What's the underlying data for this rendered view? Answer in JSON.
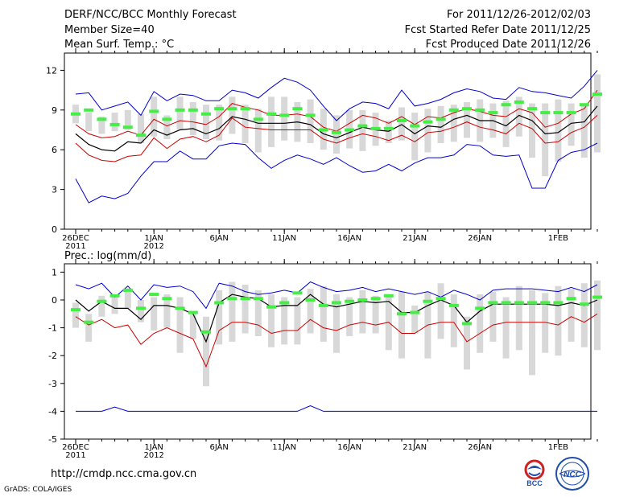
{
  "header": {
    "title": "DERF/NCC/BCC Monthly Forecast",
    "member_size": "Member Size=40",
    "variable_temp": "Mean Surf. Temp.: °C",
    "period": "For 2011/12/26-2012/02/03",
    "fcst_started": "Fcst Started Refer Date 2011/12/25",
    "fcst_produced": "Fcst Produced Date 2011/12/26"
  },
  "footer": {
    "url": "http://cmdp.ncc.cma.gov.cn",
    "grads": "GrADS: COLA/IGES",
    "logo_bcc": "BCC",
    "logo_ncc": "NCC"
  },
  "colors": {
    "max": "#0000cc",
    "min": "#cc0000",
    "mean": "#000000",
    "obs": "#44ee44",
    "bar": "#d8d8d8"
  },
  "chart_data": [
    {
      "type": "line",
      "title": "Mean Surf. Temp.: °C",
      "ylim": [
        0,
        13.3
      ],
      "yticks": [
        0,
        3,
        6,
        9,
        12
      ],
      "x_dates": "2011/12/26 to 2012/02/03 (daily)",
      "xticks": [
        {
          "day": 0,
          "label": "26DEC",
          "sub": "2011"
        },
        {
          "day": 6,
          "label": "1JAN",
          "sub": "2012"
        },
        {
          "day": 11,
          "label": "6JAN",
          "sub": ""
        },
        {
          "day": 16,
          "label": "11JAN",
          "sub": ""
        },
        {
          "day": 21,
          "label": "16JAN",
          "sub": ""
        },
        {
          "day": 26,
          "label": "21JAN",
          "sub": ""
        },
        {
          "day": 31,
          "label": "26JAN",
          "sub": ""
        },
        {
          "day": 37,
          "label": "1FEB",
          "sub": ""
        }
      ],
      "series": [
        {
          "name": "max",
          "values": [
            10.2,
            10.3,
            9.0,
            9.3,
            9.6,
            8.6,
            10.4,
            9.7,
            10.2,
            10.1,
            9.7,
            9.7,
            10.5,
            10.3,
            9.9,
            10.7,
            11.4,
            11.1,
            10.5,
            9.3,
            8.2,
            9.1,
            9.6,
            9.5,
            9.1,
            10.5,
            9.3,
            9.5,
            9.8,
            10.3,
            10.6,
            10.4,
            9.9,
            9.8,
            10.7,
            10.4,
            10.3,
            10.1,
            9.9,
            10.8,
            12.0
          ]
        },
        {
          "name": "p75",
          "values": [
            7.9,
            7.2,
            6.9,
            7.0,
            7.4,
            7.1,
            8.3,
            7.8,
            8.2,
            8.1,
            7.9,
            8.5,
            9.5,
            9.2,
            9.0,
            8.6,
            8.6,
            8.7,
            8.5,
            7.7,
            7.4,
            8.0,
            8.6,
            8.4,
            8.0,
            8.5,
            7.9,
            8.5,
            8.4,
            8.8,
            9.1,
            8.9,
            8.6,
            8.5,
            9.1,
            8.8,
            7.7,
            8.0,
            8.7,
            9.1,
            10.5
          ]
        },
        {
          "name": "mean",
          "values": [
            7.2,
            6.4,
            6.0,
            5.9,
            6.6,
            6.5,
            7.5,
            7.1,
            7.5,
            7.6,
            7.2,
            7.6,
            8.5,
            8.3,
            8.0,
            8.0,
            8.0,
            8.1,
            7.9,
            7.2,
            6.9,
            7.3,
            7.7,
            7.5,
            7.4,
            7.9,
            7.2,
            7.8,
            7.7,
            8.3,
            8.6,
            8.2,
            8.2,
            7.8,
            8.6,
            8.2,
            7.2,
            7.3,
            8.0,
            8.1,
            9.3
          ]
        },
        {
          "name": "min",
          "values": [
            6.5,
            5.6,
            5.2,
            5.1,
            5.5,
            5.6,
            6.9,
            6.1,
            6.8,
            7.0,
            6.6,
            7.1,
            8.4,
            7.7,
            7.6,
            7.5,
            7.5,
            7.5,
            7.5,
            6.8,
            6.5,
            6.9,
            7.2,
            7.0,
            6.7,
            7.1,
            6.6,
            7.3,
            7.4,
            7.7,
            8.1,
            7.7,
            7.5,
            7.2,
            8.0,
            7.6,
            6.5,
            6.6,
            7.3,
            7.7,
            8.6
          ]
        },
        {
          "name": "abs_min",
          "values": [
            3.8,
            2.0,
            2.5,
            2.3,
            2.7,
            4.0,
            5.1,
            5.1,
            5.9,
            5.3,
            5.3,
            6.3,
            6.5,
            6.4,
            5.4,
            4.6,
            5.2,
            5.6,
            5.3,
            4.9,
            5.4,
            4.8,
            4.3,
            4.4,
            4.9,
            4.4,
            5.0,
            5.4,
            5.4,
            5.6,
            6.4,
            6.3,
            5.6,
            5.5,
            5.6,
            3.1,
            3.1,
            5.2,
            5.8,
            6.0,
            6.5
          ]
        },
        {
          "name": "obs",
          "values": [
            8.7,
            9.0,
            8.3,
            7.9,
            7.7,
            7.1,
            8.9,
            8.3,
            9.0,
            9.0,
            8.7,
            9.1,
            9.1,
            9.1,
            8.3,
            8.7,
            8.6,
            9.1,
            8.6,
            7.5,
            7.3,
            7.5,
            7.8,
            7.6,
            7.6,
            8.2,
            7.8,
            8.1,
            8.3,
            9.0,
            9.1,
            9.0,
            8.8,
            9.4,
            9.6,
            9.1,
            8.8,
            8.8,
            8.8,
            9.4,
            10.2
          ]
        },
        {
          "name": "bar_lo",
          "values": [
            8.0,
            7.4,
            7.2,
            7.4,
            7.5,
            6.5,
            7.0,
            6.8,
            7.5,
            7.1,
            6.8,
            6.7,
            7.2,
            6.5,
            5.8,
            6.2,
            6.7,
            6.6,
            6.5,
            6.0,
            5.7,
            6.1,
            5.9,
            6.3,
            6.5,
            6.7,
            5.2,
            5.8,
            6.5,
            6.6,
            6.9,
            6.6,
            6.9,
            6.2,
            7.0,
            5.4,
            4.0,
            5.1,
            6.3,
            5.4,
            5.8
          ]
        },
        {
          "name": "bar_hi",
          "values": [
            9.4,
            8.8,
            8.5,
            8.8,
            9.0,
            8.7,
            10.0,
            8.6,
            10.0,
            9.6,
            9.4,
            9.4,
            10.0,
            9.4,
            9.1,
            10.0,
            10.0,
            9.6,
            9.8,
            9.1,
            8.6,
            9.0,
            9.0,
            8.8,
            8.2,
            9.2,
            8.8,
            9.1,
            9.3,
            9.4,
            9.6,
            9.8,
            9.5,
            9.7,
            10.0,
            9.5,
            9.5,
            9.8,
            9.5,
            9.5,
            11.7
          ]
        }
      ]
    },
    {
      "type": "line",
      "title": "Prec.: log(mm/d)",
      "ylim": [
        -5,
        1.3
      ],
      "yticks": [
        -5,
        -4,
        -3,
        -2,
        -1,
        0,
        1
      ],
      "xticks": [
        {
          "day": 0,
          "label": "26DEC",
          "sub": "2011"
        },
        {
          "day": 6,
          "label": "1JAN",
          "sub": "2012"
        },
        {
          "day": 11,
          "label": "6JAN",
          "sub": ""
        },
        {
          "day": 16,
          "label": "11JAN",
          "sub": ""
        },
        {
          "day": 21,
          "label": "16JAN",
          "sub": ""
        },
        {
          "day": 26,
          "label": "21JAN",
          "sub": ""
        },
        {
          "day": 31,
          "label": "26JAN",
          "sub": ""
        },
        {
          "day": 37,
          "label": "1FEB",
          "sub": ""
        }
      ],
      "series": [
        {
          "name": "max",
          "values": [
            0.55,
            0.4,
            0.6,
            0.1,
            0.5,
            0.0,
            0.55,
            0.45,
            0.5,
            0.3,
            -0.3,
            0.6,
            0.5,
            0.3,
            0.2,
            0.25,
            0.35,
            0.25,
            0.65,
            0.45,
            0.3,
            0.35,
            0.45,
            0.3,
            0.4,
            0.3,
            0.2,
            0.3,
            0.1,
            0.35,
            0.2,
            0.0,
            0.35,
            0.4,
            0.4,
            0.4,
            0.35,
            0.3,
            0.45,
            0.3,
            0.55
          ]
        },
        {
          "name": "mean",
          "values": [
            0.0,
            -0.4,
            -0.05,
            -0.3,
            -0.3,
            -0.7,
            -0.2,
            -0.2,
            -0.3,
            -0.5,
            -1.5,
            -0.1,
            0.2,
            0.1,
            0.05,
            -0.25,
            -0.2,
            -0.2,
            0.2,
            -0.15,
            -0.25,
            -0.15,
            -0.05,
            -0.1,
            -0.05,
            -0.45,
            -0.45,
            -0.2,
            0.0,
            -0.2,
            -0.8,
            -0.4,
            -0.15,
            -0.15,
            -0.15,
            -0.15,
            -0.15,
            -0.2,
            -0.1,
            -0.2,
            0.0
          ]
        },
        {
          "name": "min",
          "values": [
            -0.6,
            -0.9,
            -0.7,
            -1.0,
            -0.9,
            -1.6,
            -1.2,
            -1.0,
            -1.2,
            -1.4,
            -2.4,
            -1.1,
            -0.8,
            -0.8,
            -0.9,
            -1.2,
            -1.1,
            -1.1,
            -0.7,
            -1.0,
            -1.1,
            -0.9,
            -0.8,
            -0.9,
            -0.8,
            -1.2,
            -1.2,
            -0.9,
            -0.8,
            -0.8,
            -1.5,
            -1.2,
            -0.9,
            -0.8,
            -0.8,
            -0.8,
            -0.8,
            -0.9,
            -0.6,
            -0.8,
            -0.5
          ]
        },
        {
          "name": "abs_min",
          "values": [
            -4,
            -4,
            -4,
            -3.85,
            -4,
            -4,
            -4,
            -4,
            -4,
            -4,
            -4,
            -4,
            -4,
            -4,
            -4,
            -4,
            -4,
            -4,
            -3.8,
            -4,
            -4,
            -4,
            -4,
            -4,
            -4,
            -4,
            -4,
            -4,
            -4,
            -4,
            -4,
            -4,
            -4,
            -4,
            -4,
            -4,
            -4,
            -4,
            -4,
            -4,
            -4
          ]
        },
        {
          "name": "obs",
          "values": [
            -0.35,
            -0.8,
            -0.05,
            0.15,
            0.35,
            -0.3,
            0.2,
            0.05,
            -0.3,
            -0.45,
            -1.15,
            -0.1,
            0.05,
            0.05,
            0.05,
            -0.25,
            -0.1,
            0.25,
            0.0,
            -0.2,
            -0.1,
            -0.05,
            0.0,
            0.05,
            0.15,
            -0.5,
            -0.45,
            -0.05,
            0.05,
            -0.2,
            -0.85,
            -0.3,
            -0.1,
            -0.1,
            -0.1,
            -0.1,
            -0.1,
            -0.1,
            0.05,
            -0.15,
            0.1
          ]
        },
        {
          "name": "bar_lo",
          "values": [
            -1.0,
            -1.5,
            -0.6,
            -0.5,
            -0.3,
            -0.8,
            -1.1,
            -1.0,
            -1.9,
            -1.4,
            -3.1,
            -1.6,
            -1.5,
            -1.2,
            -1.3,
            -1.7,
            -1.6,
            -1.6,
            -1.2,
            -1.5,
            -1.9,
            -1.3,
            -1.2,
            -1.2,
            -1.8,
            -2.1,
            -1.2,
            -2.1,
            -1.4,
            -1.7,
            -2.5,
            -1.9,
            -1.5,
            -2.1,
            -1.8,
            -2.7,
            -1.9,
            -2.0,
            -1.5,
            -1.7,
            -1.8
          ]
        },
        {
          "name": "bar_hi",
          "values": [
            -0.1,
            -0.5,
            0.15,
            0.15,
            0.4,
            0.0,
            0.1,
            0.2,
            0.1,
            -0.4,
            -0.6,
            0.35,
            0.65,
            0.55,
            0.35,
            0.2,
            0.1,
            0.1,
            0.4,
            0.5,
            0.2,
            0.1,
            0.35,
            0.15,
            0.2,
            0.3,
            -0.2,
            0.3,
            0.6,
            0.2,
            -0.6,
            0.2,
            0.3,
            0.1,
            0.5,
            0.35,
            0.25,
            0.5,
            0.4,
            0.6,
            0.7
          ]
        }
      ]
    }
  ]
}
